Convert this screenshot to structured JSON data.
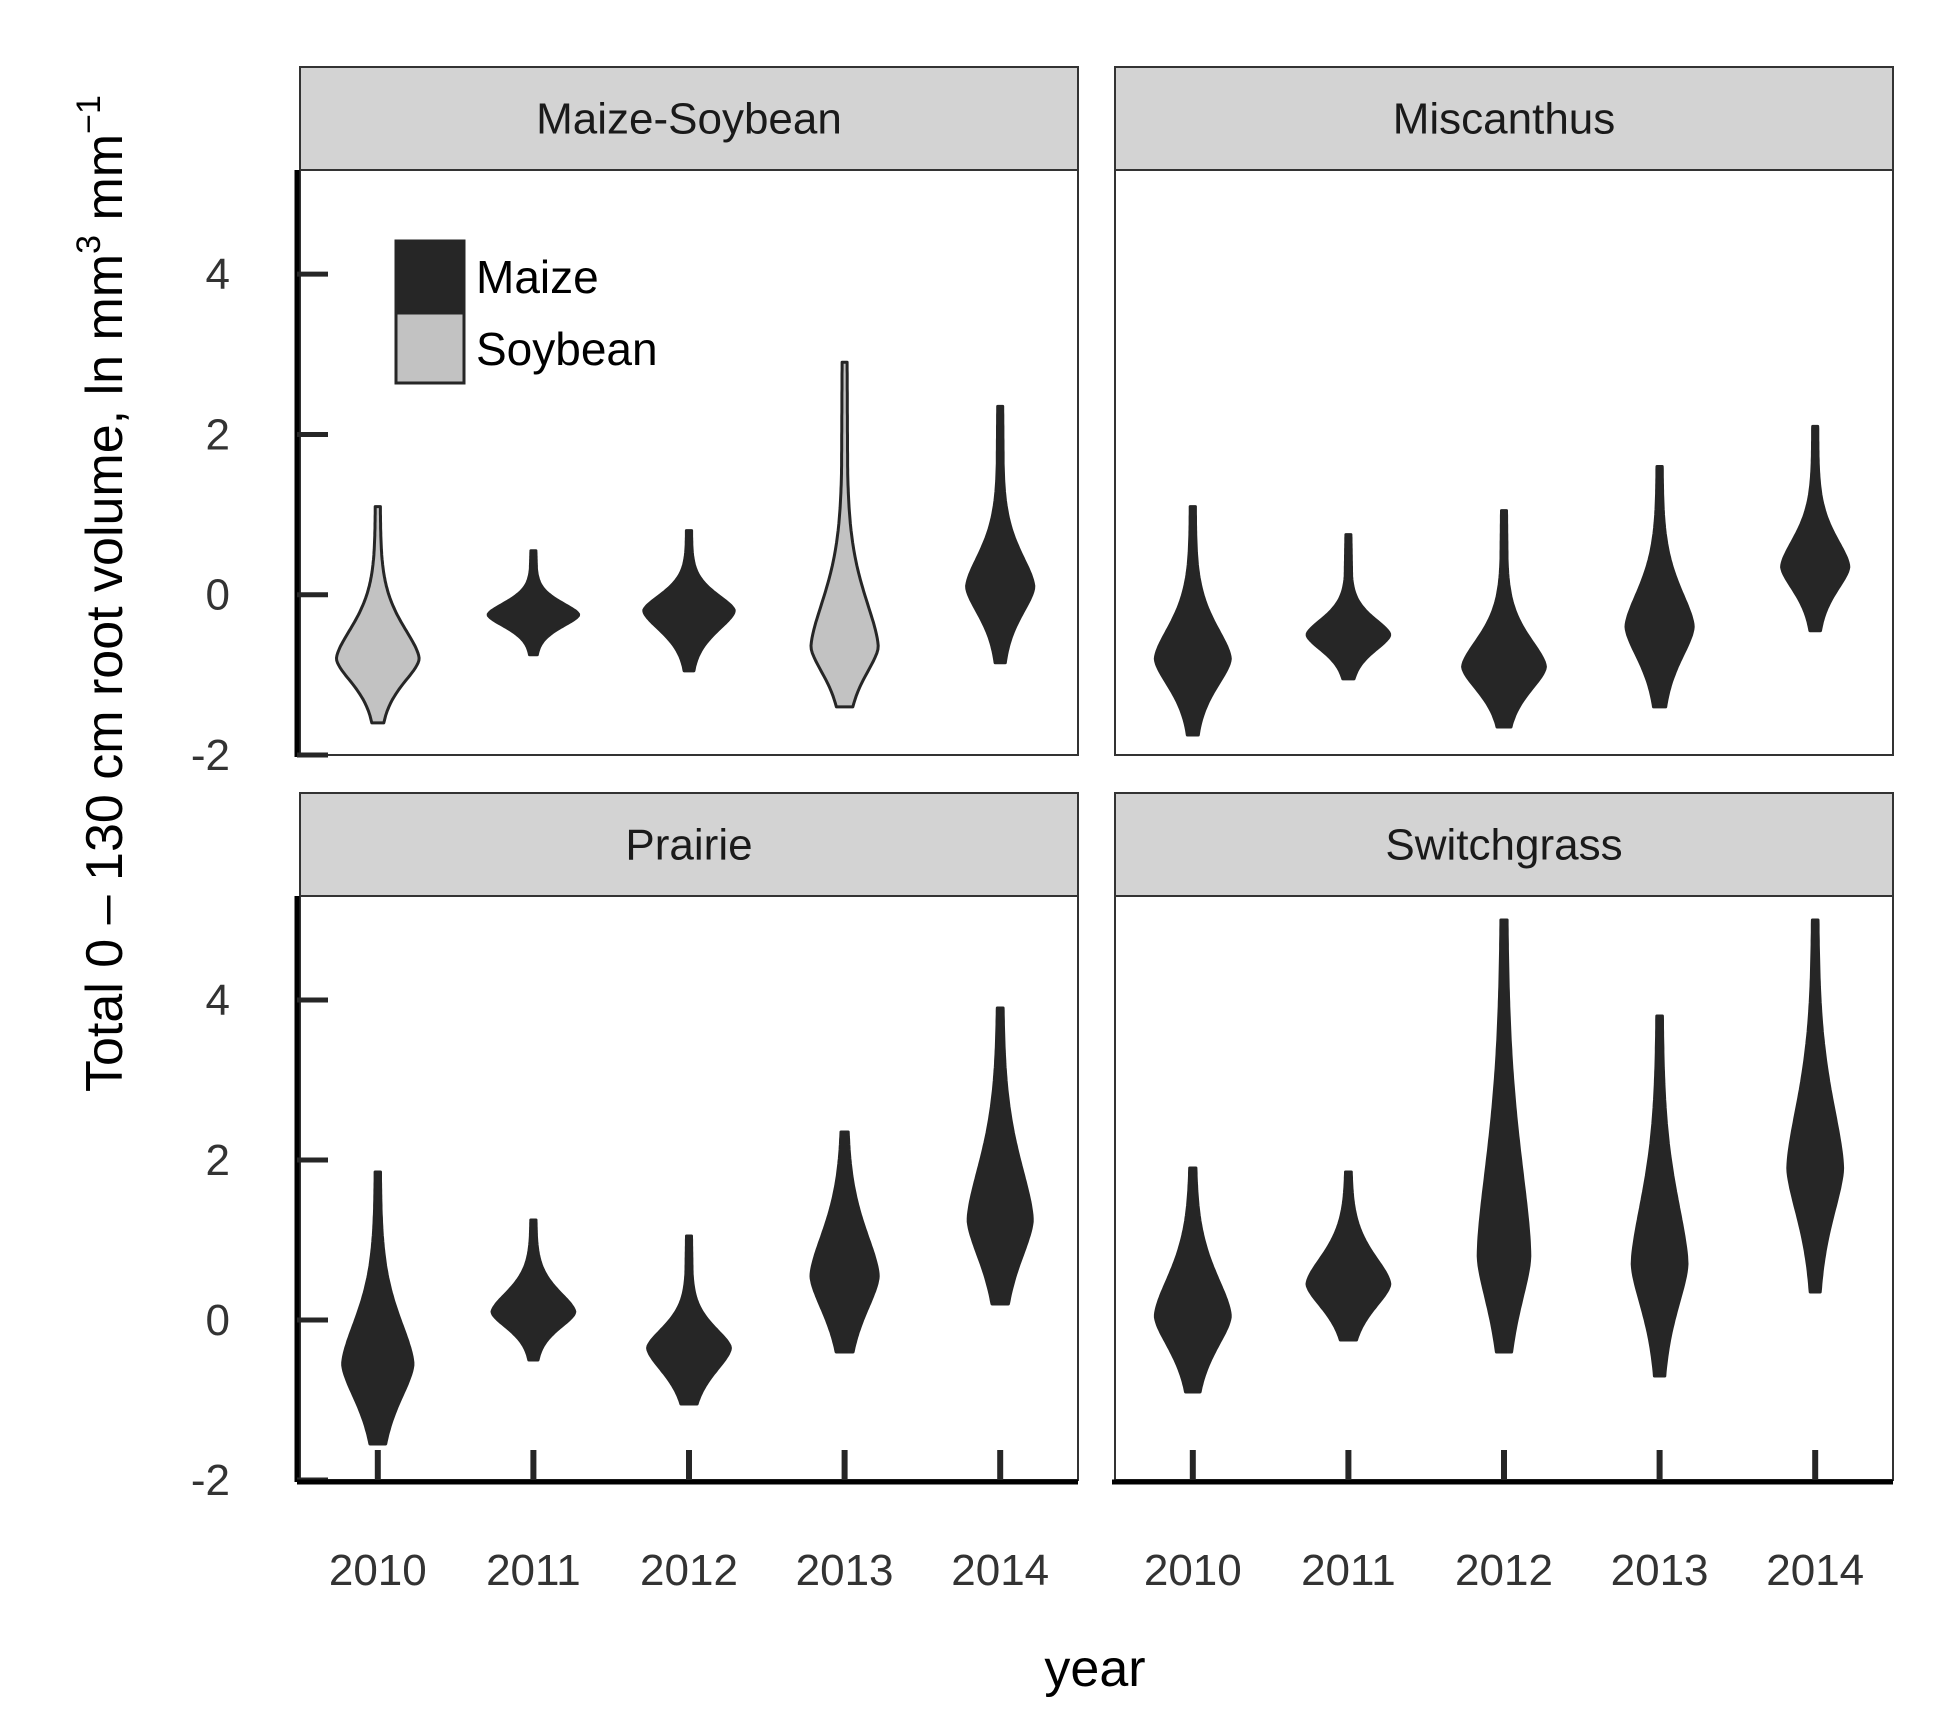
{
  "chart_data": {
    "type": "violin",
    "title": "",
    "xlabel": "year",
    "ylabel": "Total 0 – 130 cm root volume, ln mm",
    "ylabel_sup1": "3",
    "ylabel_mid": " mm",
    "ylabel_sup2": "−1",
    "ylim": [
      -2,
      5.3
    ],
    "yticks": [
      -2,
      0,
      2,
      4
    ],
    "categories": [
      "2010",
      "2011",
      "2012",
      "2013",
      "2014"
    ],
    "legend": {
      "placement": "top-left (Maize-Soybean panel)",
      "entries": [
        {
          "label": "Maize",
          "color": "#262626"
        },
        {
          "label": "Soybean",
          "color": "#c2c2c2"
        }
      ]
    },
    "colors": {
      "maize": "#262626",
      "soybean": "#c2c2c2",
      "strip": "#d3d3d3",
      "outline": "#262626"
    },
    "panels": [
      {
        "name": "Maize-Soybean",
        "violins": [
          {
            "year": "2010",
            "crop": "Soybean",
            "min": -1.6,
            "max": 1.1,
            "mode": -0.8,
            "width": 0.5,
            "upper_spread": 0.4,
            "lower_spread": 0.3
          },
          {
            "year": "2011",
            "crop": "Maize",
            "min": -0.75,
            "max": 0.55,
            "mode": -0.25,
            "width": 0.55,
            "upper_spread": 0.15,
            "lower_spread": 0.15
          },
          {
            "year": "2012",
            "crop": "Maize",
            "min": -0.95,
            "max": 0.8,
            "mode": -0.2,
            "width": 0.55,
            "upper_spread": 0.2,
            "lower_spread": 0.25
          },
          {
            "year": "2013",
            "crop": "Soybean",
            "min": -1.4,
            "max": 2.9,
            "mode": -0.65,
            "width": 0.4,
            "upper_spread": 0.6,
            "lower_spread": 0.35
          },
          {
            "year": "2014",
            "crop": "Maize",
            "min": -0.85,
            "max": 2.35,
            "mode": 0.1,
            "width": 0.4,
            "upper_spread": 0.4,
            "lower_spread": 0.35
          }
        ]
      },
      {
        "name": "Miscanthus",
        "violins": [
          {
            "year": "2010",
            "crop": "Maize",
            "min": -1.75,
            "max": 1.1,
            "mode": -0.8,
            "width": 0.45,
            "upper_spread": 0.4,
            "lower_spread": 0.35
          },
          {
            "year": "2011",
            "crop": "Maize",
            "min": -1.05,
            "max": 0.75,
            "mode": -0.5,
            "width": 0.5,
            "upper_spread": 0.2,
            "lower_spread": 0.2
          },
          {
            "year": "2012",
            "crop": "Maize",
            "min": -1.65,
            "max": 1.05,
            "mode": -0.9,
            "width": 0.5,
            "upper_spread": 0.35,
            "lower_spread": 0.3
          },
          {
            "year": "2013",
            "crop": "Maize",
            "min": -1.4,
            "max": 1.6,
            "mode": -0.4,
            "width": 0.4,
            "upper_spread": 0.45,
            "lower_spread": 0.4
          },
          {
            "year": "2014",
            "crop": "Maize",
            "min": -0.45,
            "max": 2.1,
            "mode": 0.35,
            "width": 0.4,
            "upper_spread": 0.35,
            "lower_spread": 0.3
          }
        ]
      },
      {
        "name": "Prairie",
        "violins": [
          {
            "year": "2010",
            "crop": "Maize",
            "min": -1.55,
            "max": 1.85,
            "mode": -0.55,
            "width": 0.42,
            "upper_spread": 0.55,
            "lower_spread": 0.45
          },
          {
            "year": "2011",
            "crop": "Maize",
            "min": -0.5,
            "max": 1.25,
            "mode": 0.1,
            "width": 0.5,
            "upper_spread": 0.25,
            "lower_spread": 0.2
          },
          {
            "year": "2012",
            "crop": "Maize",
            "min": -1.05,
            "max": 1.05,
            "mode": -0.35,
            "width": 0.5,
            "upper_spread": 0.25,
            "lower_spread": 0.3
          },
          {
            "year": "2013",
            "crop": "Maize",
            "min": -0.4,
            "max": 2.35,
            "mode": 0.55,
            "width": 0.4,
            "upper_spread": 0.55,
            "lower_spread": 0.45
          },
          {
            "year": "2014",
            "crop": "Maize",
            "min": 0.2,
            "max": 3.9,
            "mode": 1.25,
            "width": 0.38,
            "upper_spread": 0.7,
            "lower_spread": 0.5
          }
        ]
      },
      {
        "name": "Switchgrass",
        "violins": [
          {
            "year": "2010",
            "crop": "Maize",
            "min": -0.9,
            "max": 1.9,
            "mode": 0.05,
            "width": 0.45,
            "upper_spread": 0.5,
            "lower_spread": 0.4
          },
          {
            "year": "2011",
            "crop": "Maize",
            "min": -0.25,
            "max": 1.85,
            "mode": 0.45,
            "width": 0.5,
            "upper_spread": 0.35,
            "lower_spread": 0.3
          },
          {
            "year": "2012",
            "crop": "Maize",
            "min": -0.4,
            "max": 5.0,
            "mode": 0.8,
            "width": 0.3,
            "upper_spread": 1.2,
            "lower_spread": 0.6
          },
          {
            "year": "2013",
            "crop": "Maize",
            "min": -0.7,
            "max": 3.8,
            "mode": 0.7,
            "width": 0.32,
            "upper_spread": 0.8,
            "lower_spread": 0.55
          },
          {
            "year": "2014",
            "crop": "Maize",
            "min": 0.35,
            "max": 5.0,
            "mode": 1.9,
            "width": 0.32,
            "upper_spread": 0.8,
            "lower_spread": 0.6
          }
        ]
      }
    ]
  }
}
